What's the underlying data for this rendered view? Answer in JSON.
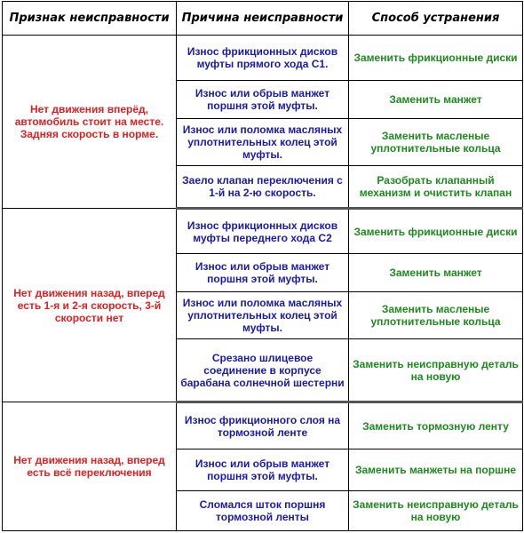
{
  "headers": [
    "Признак неисправности",
    "Причина неисправности",
    "Способ устранения"
  ],
  "groups": [
    {
      "symptom": "Нет движения вперёд, автомобиль стоит на месте. Задняя скорость в норме.",
      "rows": [
        {
          "cause": "Износ фрикционных дисков муфты прямого хода С1.",
          "fix": "Заменить фрикционные диски"
        },
        {
          "cause": "Износ или обрыв манжет поршня этой муфты.",
          "fix": "Заменить манжет"
        },
        {
          "cause": "Износ или поломка масляных уплотнительных колец этой муфты.",
          "fix": "Заменить масленые уплотнительные кольца"
        },
        {
          "cause": "Заело клапан переключения с 1-й на 2-ю скорость.",
          "fix": "Разобрать клапанный механизм и очистить клапан"
        }
      ]
    },
    {
      "symptom": "Нет движения назад, вперед есть 1-я и 2-я скорость, 3-й скорости нет",
      "rows": [
        {
          "cause": "Износ фрикционных дисков муфты переднего хода С2",
          "fix": "Заменить фрикционные диски"
        },
        {
          "cause": "Износ или обрыв манжет поршня этой муфты.",
          "fix": "Заменить манжет"
        },
        {
          "cause": "Износ или поломка масляных уплотнительных колец этой муфты.",
          "fix": "Заменить масленые уплотнительные кольца"
        },
        {
          "cause": "Срезано шлицевое соединение в корпусе барабана солнечной шестерни",
          "fix": "Заменить неисправную деталь на новую"
        }
      ]
    },
    {
      "symptom": "Нет движения назад, вперед есть всё переключения",
      "rows": [
        {
          "cause": "Износ фрикционного слоя на тормозной ленте",
          "fix": "Заменить тормозную ленту"
        },
        {
          "cause": "Износ или обрыв манжет поршня этой муфты.",
          "fix": "Заменить манжеты на поршне"
        },
        {
          "cause": "Сломался шток поршня тормозной ленты",
          "fix": "Заменить неисправную деталь на новую"
        }
      ]
    }
  ],
  "colors": {
    "symptom": "#e02020",
    "cause": "#1a1aaa",
    "fix": "#1e8a1e"
  }
}
